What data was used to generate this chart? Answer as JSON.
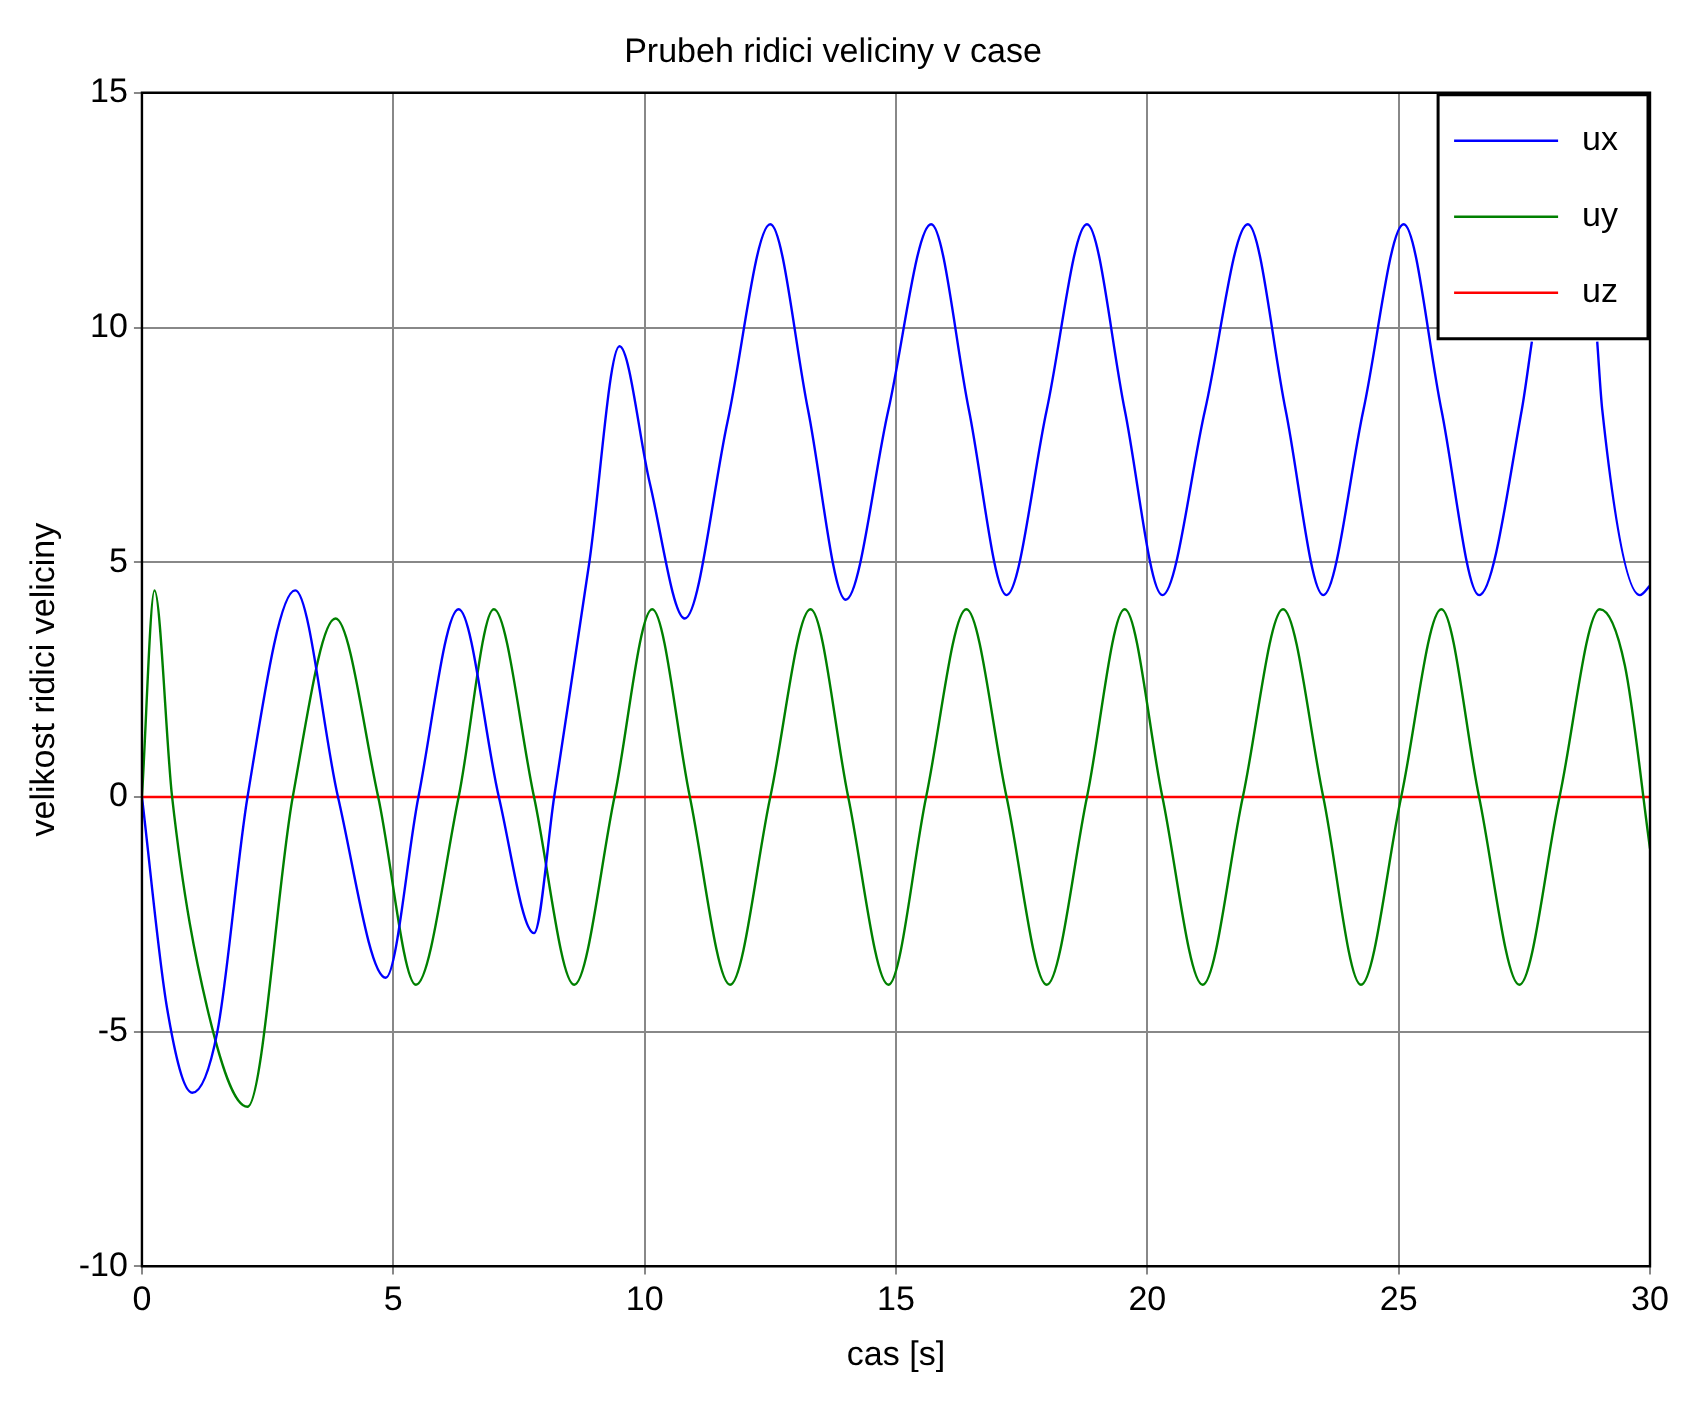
{
  "chart_data": {
    "type": "line",
    "title": "Prubeh ridici veliciny v case",
    "xlabel": "cas [s]",
    "ylabel": "velikost ridici veliciny",
    "xlim": [
      0,
      30
    ],
    "xticks": [
      0,
      5,
      10,
      15,
      20,
      25,
      30
    ],
    "ylim": [
      -10,
      15
    ],
    "yticks": [
      -10,
      -5,
      0,
      5,
      10,
      15
    ],
    "grid": true,
    "legend": "top right",
    "marker": "none",
    "line_style": "solid",
    "series": [
      {
        "name": "ux",
        "color": "#0000ff",
        "x": [
          0,
          0.5,
          1.0,
          1.5,
          2.1,
          3.05,
          3.9,
          4.85,
          5.5,
          6.3,
          7.1,
          7.8,
          8.2,
          8.9,
          9.5,
          10.1,
          10.8,
          11.65,
          12.5,
          13.25,
          14.0,
          14.85,
          15.7,
          16.45,
          17.2,
          18.0,
          18.8,
          19.55,
          20.3,
          21.15,
          22.0,
          22.75,
          23.5,
          24.3,
          25.1,
          25.85,
          26.6,
          27.45,
          27.65,
          28.3,
          28.95,
          29.05,
          29.8,
          30
        ],
        "values": [
          0,
          -4.5,
          -6.3,
          -5,
          0,
          4.4,
          0,
          -3.85,
          0,
          4.0,
          0,
          -2.9,
          0,
          5,
          9.6,
          6.7,
          3.8,
          8.0,
          12.2,
          8.25,
          4.2,
          8.25,
          12.2,
          8.25,
          4.3,
          8.25,
          12.2,
          8.25,
          4.3,
          8.25,
          12.2,
          8.25,
          4.3,
          8.25,
          12.2,
          8.25,
          4.3,
          8.25,
          9.7,
          null,
          9.7,
          8.25,
          4.3,
          4.5
        ]
      },
      {
        "name": "uy",
        "color": "#008000",
        "x": [
          0,
          0.25,
          0.6,
          1.3,
          2.1,
          3.0,
          3.85,
          4.7,
          5.45,
          6.3,
          7.0,
          7.8,
          8.6,
          9.4,
          10.15,
          10.9,
          11.7,
          12.5,
          13.3,
          14.05,
          14.85,
          15.6,
          16.4,
          17.2,
          18.0,
          18.8,
          19.55,
          20.3,
          21.1,
          21.9,
          22.7,
          23.5,
          24.25,
          25.05,
          25.85,
          26.6,
          27.4,
          28.2,
          29.0,
          29.5,
          30
        ],
        "values": [
          0,
          4.4,
          0,
          -4.5,
          -6.6,
          0,
          3.8,
          0,
          -4,
          0,
          4,
          0,
          -4,
          0,
          4,
          0,
          -4,
          0,
          4,
          0,
          -4,
          0,
          4,
          0,
          -4,
          0,
          4,
          0,
          -4,
          0,
          4,
          0,
          -4,
          0,
          4,
          0,
          -4,
          0,
          4,
          2.8,
          -1.1
        ]
      },
      {
        "name": "uz",
        "color": "#ff0000",
        "x": [
          0,
          30
        ],
        "values": [
          0,
          0
        ]
      }
    ]
  }
}
